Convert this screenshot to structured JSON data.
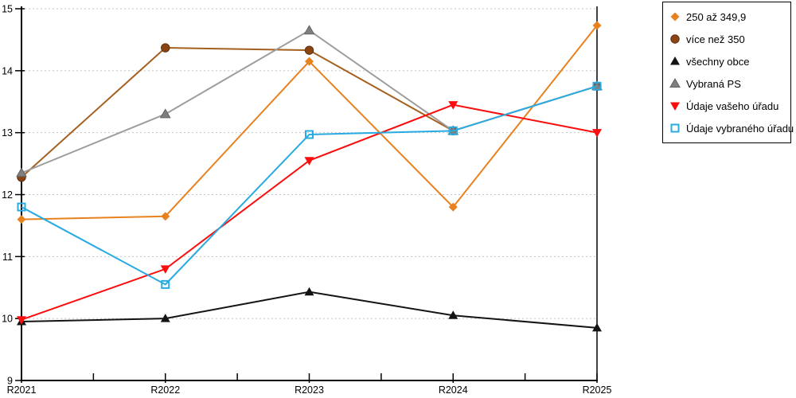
{
  "chart_data": {
    "type": "line",
    "title": "",
    "xlabel": "",
    "ylabel": "",
    "categories": [
      "R2021",
      "R2022",
      "R2023",
      "R2024",
      "R2025"
    ],
    "ylim": [
      9,
      15
    ],
    "yticks": [
      9,
      10,
      11,
      12,
      13,
      14,
      15
    ],
    "grid": "horizontal-dotted",
    "grid_color": "#c3c3c3",
    "legend_position": "top-right",
    "series": [
      {
        "name": "250 až 349,9",
        "marker": "diamond",
        "color": "#e8821f",
        "values": [
          11.6,
          11.65,
          14.15,
          11.8,
          14.73
        ]
      },
      {
        "name": "více než 350",
        "marker": "circle",
        "color": "#8b4513",
        "line_color": "#a5601f",
        "edge": "#5f2f0e",
        "values": [
          12.28,
          14.37,
          14.33,
          13.03,
          13.75
        ]
      },
      {
        "name": "všechny obce",
        "marker": "triangle-up",
        "color": "#141414",
        "values": [
          9.95,
          10.0,
          10.43,
          10.05,
          9.85
        ]
      },
      {
        "name": "Vybraná PS",
        "marker": "triangle-up",
        "color": "#7f7f7f",
        "line_color": "#9d9d9d",
        "edge": "#636363",
        "values": [
          12.35,
          13.3,
          14.65,
          13.03,
          13.75
        ]
      },
      {
        "name": "Údaje vašeho úřadu",
        "marker": "triangle-down",
        "color": "#fb0d0d",
        "values": [
          9.98,
          10.8,
          12.55,
          13.45,
          13.0
        ]
      },
      {
        "name": "Údaje vybraného úřadu",
        "marker": "square-open",
        "color": "#29abe2",
        "values": [
          11.8,
          10.55,
          12.97,
          13.03,
          13.75
        ]
      }
    ]
  }
}
